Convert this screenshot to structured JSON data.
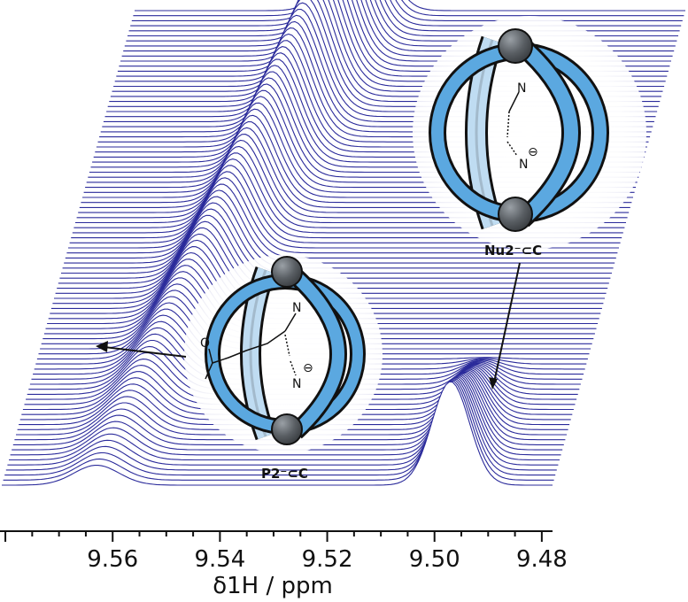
{
  "chart_data": {
    "type": "line",
    "subtype": "stacked-spectra",
    "xlabel": "δ1H / ppm",
    "xlim": [
      9.581,
      9.478
    ],
    "x_reversed": true,
    "x_ticks": [
      "9.56",
      "9.54",
      "9.52",
      "9.50",
      "9.48"
    ],
    "n_traces": 95,
    "line_color": "#2b2b9b",
    "series": [
      {
        "peak_ppm_at_front": 9.563,
        "peak_ppm_at_back": 9.539,
        "peak_fraction_front": 0.15,
        "peak_fraction_back": 1.0
      },
      {
        "peak_ppm_at_front": 9.497,
        "peak_ppm_at_back": 9.497,
        "peak_fraction_front": 0.78,
        "peak_fraction_back": 0.0
      }
    ]
  },
  "annotations": {
    "complex_upper": {
      "label": "Nu2⁻⊂C",
      "atoms": [
        "N",
        "N",
        "⊖"
      ]
    },
    "complex_lower": {
      "label": "P2⁻⊂C",
      "atoms": [
        "O",
        "N",
        "N",
        "⊖"
      ]
    }
  },
  "colors": {
    "ring_blue": "#5ba8e0",
    "ring_light": "#c5e2f7",
    "bead_gray": "#5a5f64",
    "axis": "#111111"
  }
}
